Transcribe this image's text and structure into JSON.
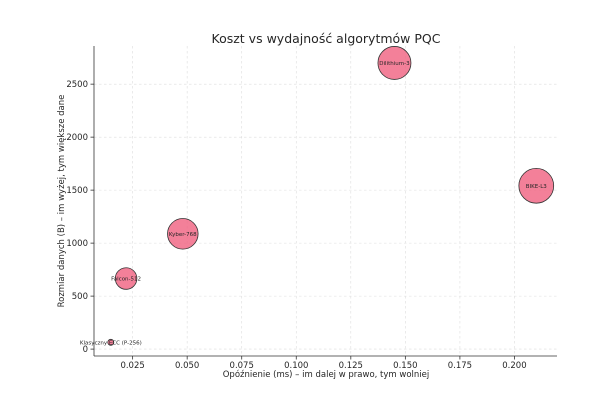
{
  "chart_data": {
    "type": "scatter",
    "title": "Koszt vs wydajność algorytmów PQC",
    "xlabel": "Opóźnienie (ms) – im dalej w prawo, tym wolniej",
    "ylabel": "Rozmiar danych (B) – im wyżej, tym większe dane",
    "xlim": [
      0.0073,
      0.2195
    ],
    "ylim": [
      -65,
      2860
    ],
    "xticks": [
      0.025,
      0.05,
      0.075,
      0.1,
      0.125,
      0.15,
      0.175,
      0.2
    ],
    "xtick_labels": [
      "0.025",
      "0.050",
      "0.075",
      "0.100",
      "0.125",
      "0.150",
      "0.175",
      "0.200"
    ],
    "yticks": [
      0,
      500,
      1000,
      1500,
      2000,
      2500
    ],
    "ytick_labels": [
      "0",
      "500",
      "1000",
      "1500",
      "2000",
      "2500"
    ],
    "grid": true,
    "bubble_color": "#f06080",
    "points": [
      {
        "label": "Klasyczny ECC (P-256)",
        "x": 0.015,
        "y": 64,
        "size": 1
      },
      {
        "label": "Falcon-512",
        "x": 0.022,
        "y": 666,
        "size": 3.6
      },
      {
        "label": "Kyber-768",
        "x": 0.048,
        "y": 1088,
        "size": 5.1
      },
      {
        "label": "Dilithium-3",
        "x": 0.145,
        "y": 2700,
        "size": 5.5
      },
      {
        "label": "BIKE-L3",
        "x": 0.21,
        "y": 1541,
        "size": 5.8
      }
    ]
  }
}
